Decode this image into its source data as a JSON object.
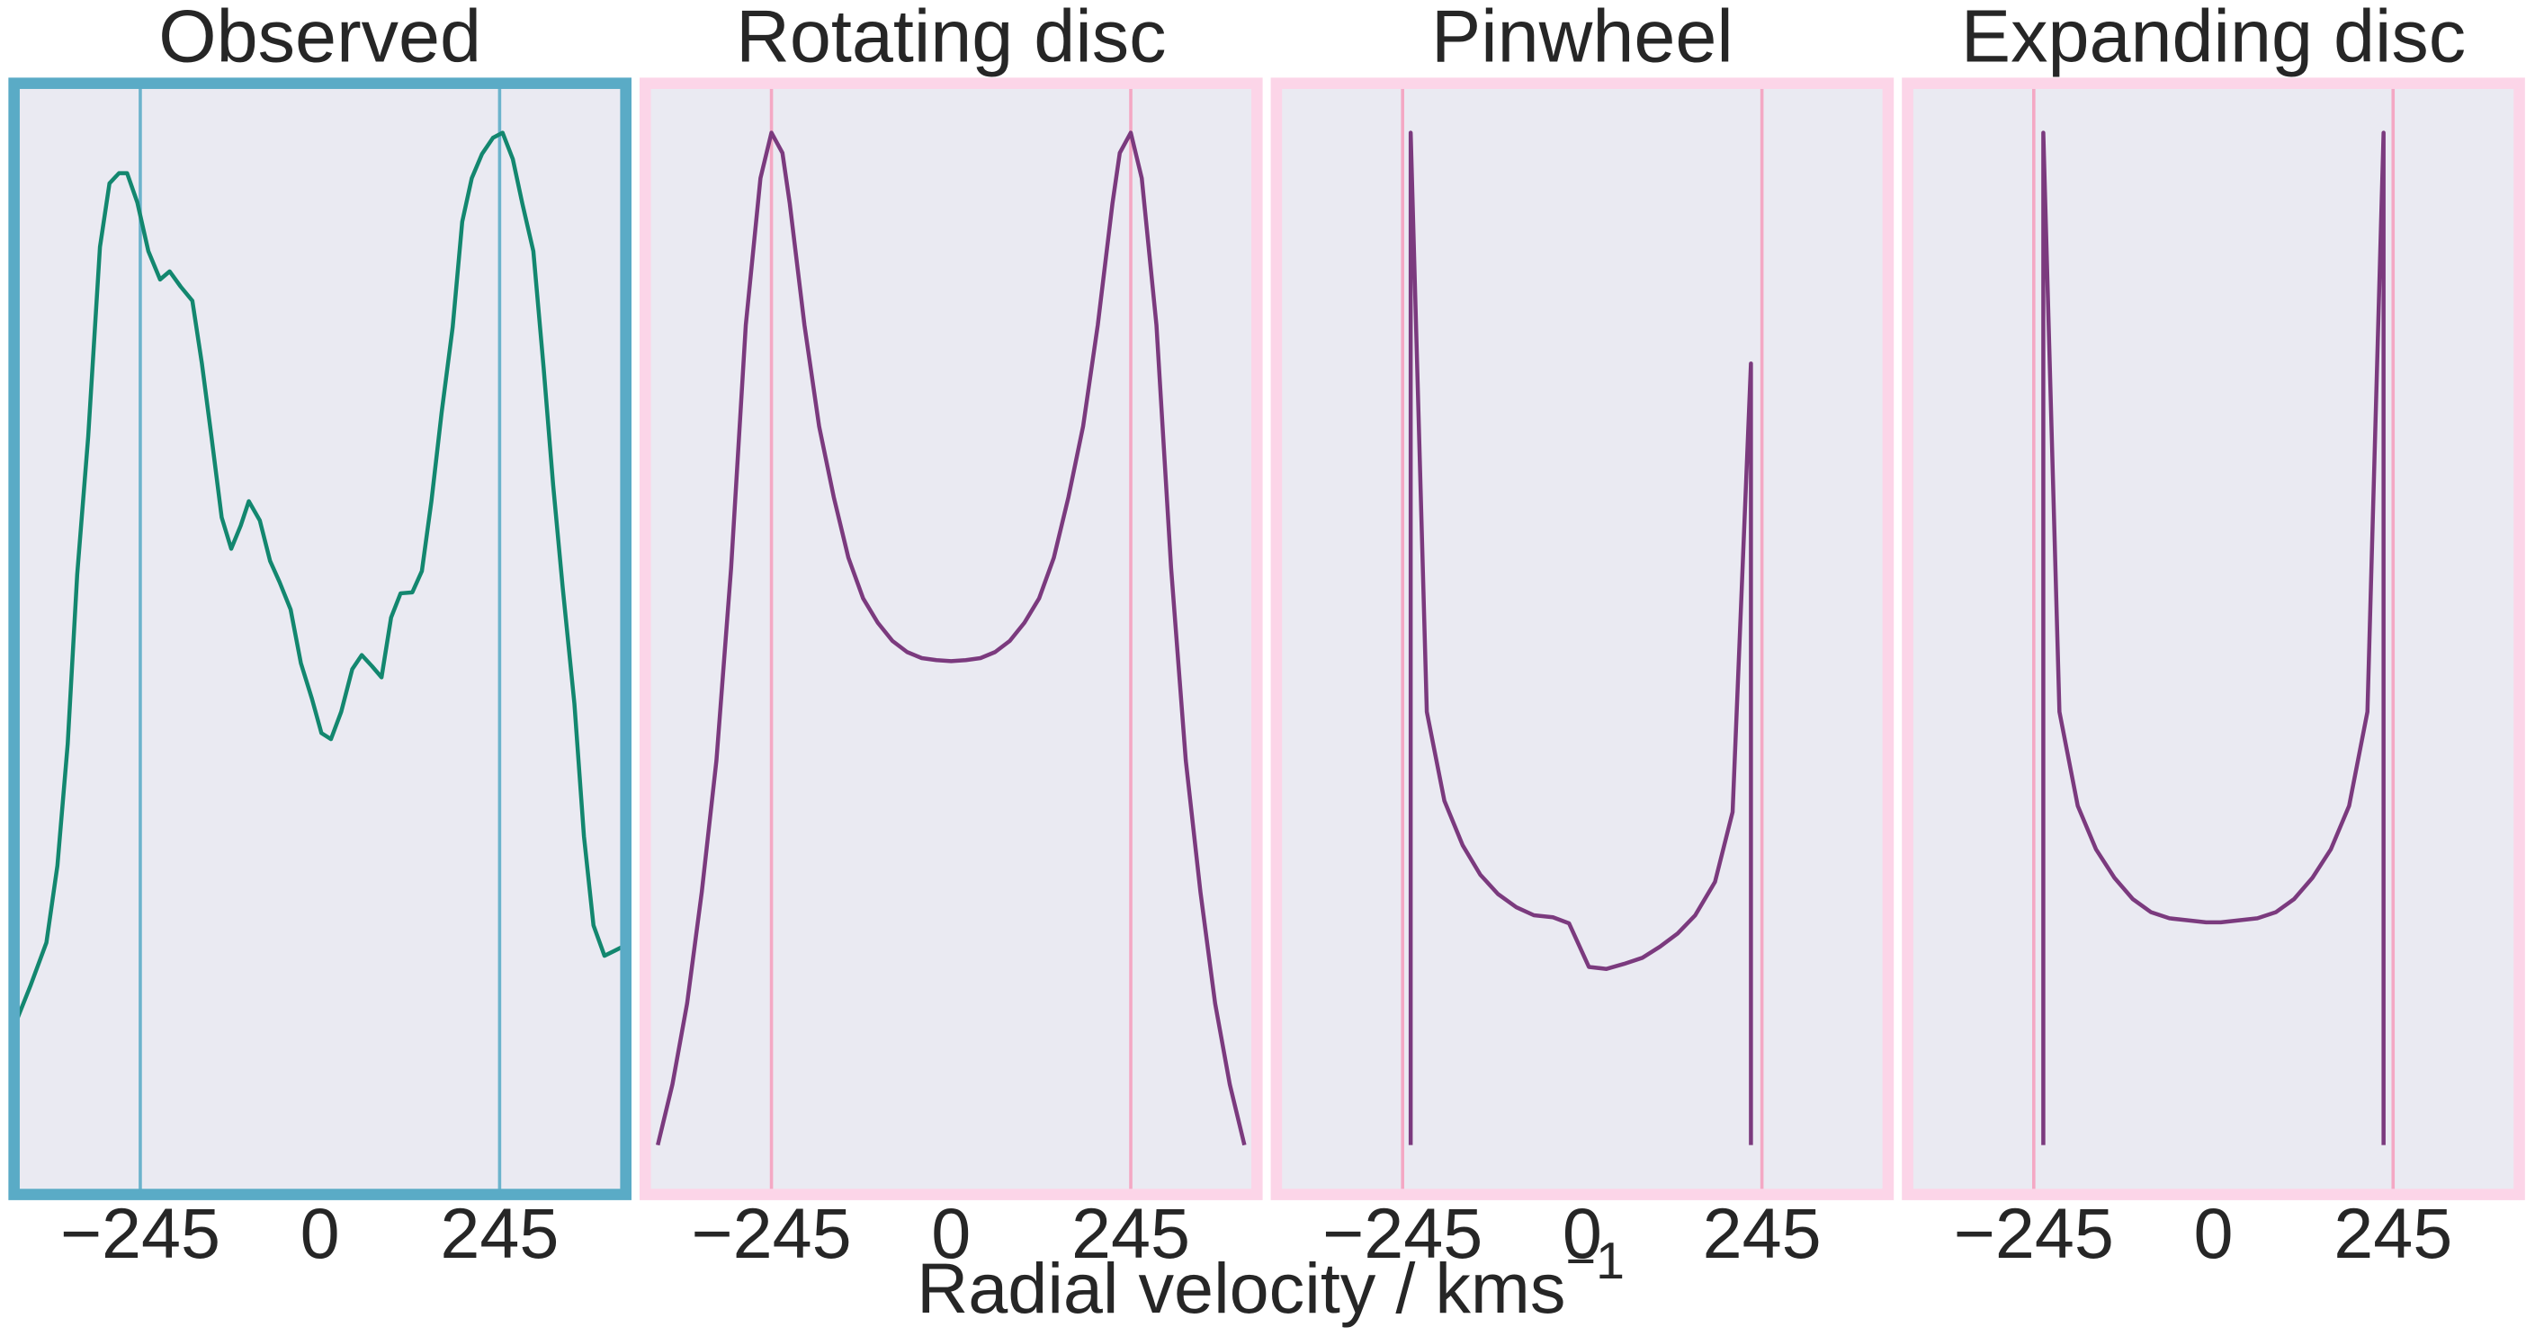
{
  "figure": {
    "xlabel": "Radial velocity / kms",
    "xlabel_exponent": "−1"
  },
  "chart_data": [
    {
      "type": "line",
      "title": "Observed",
      "background": "#eaeaf2",
      "frame_color": "#5aabc6",
      "vline_color": "#6cb3cc",
      "color": "#13876f",
      "xlim": [
        -416,
        416
      ],
      "ylim": [
        -0.048,
        1.048
      ],
      "xticks": [
        {
          "value": -245,
          "label": "−245"
        },
        0,
        245
      ],
      "vlines": [
        -245,
        245
      ],
      "x": [
        -417,
        -395,
        -373,
        -358,
        -344,
        -331,
        -316,
        -300,
        -287,
        -274,
        -263,
        -249,
        -234,
        -218,
        -205,
        -190,
        -174,
        -161,
        -148,
        -134,
        -121,
        -108,
        -97,
        -82,
        -68,
        -55,
        -40,
        -26,
        -11,
        2,
        15,
        29,
        44,
        57,
        71,
        84,
        97,
        110,
        126,
        139,
        152,
        166,
        181,
        194,
        207,
        221,
        236,
        249,
        263,
        276,
        291,
        305,
        318,
        331,
        347,
        360,
        373,
        388,
        402,
        413
      ],
      "values": [
        0.117,
        0.157,
        0.2,
        0.276,
        0.396,
        0.564,
        0.7,
        0.887,
        0.95,
        0.96,
        0.96,
        0.931,
        0.883,
        0.855,
        0.863,
        0.848,
        0.834,
        0.772,
        0.7,
        0.62,
        0.589,
        0.612,
        0.636,
        0.617,
        0.577,
        0.556,
        0.529,
        0.476,
        0.441,
        0.407,
        0.401,
        0.428,
        0.47,
        0.484,
        0.473,
        0.462,
        0.521,
        0.545,
        0.546,
        0.567,
        0.636,
        0.724,
        0.808,
        0.912,
        0.955,
        0.979,
        0.995,
        1.0,
        0.974,
        0.93,
        0.883,
        0.768,
        0.652,
        0.551,
        0.436,
        0.305,
        0.217,
        0.187,
        0.192,
        0.196
      ]
    },
    {
      "type": "line",
      "title": "Rotating disc",
      "background": "#eaeaf2",
      "frame_color": "#fcd5e8",
      "vline_color": "#f4a8c4",
      "color": "#7b3a7e",
      "xlim": [
        -416,
        416
      ],
      "ylim": [
        -0.048,
        1.048
      ],
      "xticks": [
        {
          "value": -245,
          "label": "−245"
        },
        0,
        245
      ],
      "vlines": [
        -245,
        245
      ],
      "x": [
        -400,
        -380,
        -360,
        -340,
        -320,
        -300,
        -280,
        -260,
        -245,
        -230,
        -220,
        -200,
        -180,
        -160,
        -140,
        -120,
        -100,
        -80,
        -60,
        -40,
        -20,
        0,
        20,
        40,
        60,
        80,
        100,
        120,
        140,
        160,
        180,
        200,
        220,
        230,
        245,
        260,
        280,
        300,
        320,
        340,
        360,
        380,
        400
      ],
      "values": [
        0,
        0.06,
        0.14,
        0.25,
        0.38,
        0.57,
        0.81,
        0.955,
        1.0,
        0.98,
        0.93,
        0.81,
        0.71,
        0.64,
        0.58,
        0.54,
        0.516,
        0.498,
        0.487,
        0.481,
        0.479,
        0.478,
        0.479,
        0.481,
        0.487,
        0.498,
        0.516,
        0.54,
        0.58,
        0.64,
        0.71,
        0.81,
        0.93,
        0.98,
        1.0,
        0.955,
        0.81,
        0.57,
        0.38,
        0.25,
        0.14,
        0.06,
        0
      ]
    },
    {
      "type": "line",
      "title": "Pinwheel",
      "background": "#eaeaf2",
      "frame_color": "#fcd5e8",
      "vline_color": "#f4a8c4",
      "color": "#7b3a7e",
      "xlim": [
        -416,
        416
      ],
      "ylim": [
        -0.048,
        1.048
      ],
      "xticks": [
        {
          "value": -245,
          "label": "−245"
        },
        0,
        245
      ],
      "vlines": [
        -245,
        245
      ],
      "x": [
        -234,
        -234,
        -212,
        -188,
        -163,
        -139,
        -115,
        -90,
        -66,
        -40,
        -18,
        9,
        33,
        57,
        82,
        106,
        130,
        154,
        181,
        205,
        230,
        230
      ],
      "values": [
        0,
        1.0,
        0.428,
        0.34,
        0.296,
        0.267,
        0.248,
        0.235,
        0.227,
        0.225,
        0.219,
        0.176,
        0.174,
        0.179,
        0.185,
        0.196,
        0.209,
        0.227,
        0.26,
        0.329,
        0.772,
        0
      ]
    },
    {
      "type": "line",
      "title": "Expanding disc",
      "background": "#eaeaf2",
      "frame_color": "#fcd5e8",
      "vline_color": "#f4a8c4",
      "color": "#7b3a7e",
      "xlim": [
        -416,
        416
      ],
      "ylim": [
        -0.048,
        1.048
      ],
      "xticks": [
        {
          "value": -245,
          "label": "−245"
        },
        0,
        245
      ],
      "vlines": [
        -245,
        245
      ],
      "x": [
        -232,
        -232,
        -210,
        -185,
        -160,
        -135,
        -110,
        -85,
        -60,
        -35,
        -10,
        10,
        35,
        60,
        85,
        110,
        135,
        160,
        185,
        210,
        232,
        232
      ],
      "values": [
        0,
        1.0,
        0.428,
        0.335,
        0.292,
        0.264,
        0.243,
        0.23,
        0.224,
        0.222,
        0.22,
        0.22,
        0.222,
        0.224,
        0.23,
        0.243,
        0.264,
        0.292,
        0.335,
        0.428,
        1.0,
        0
      ]
    }
  ]
}
